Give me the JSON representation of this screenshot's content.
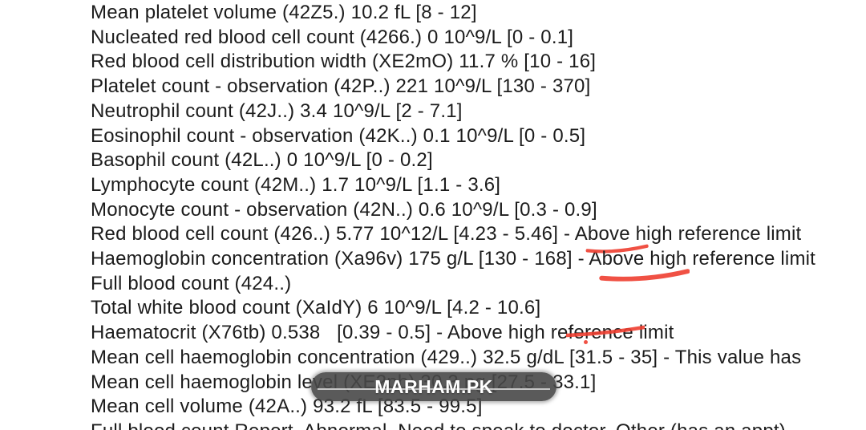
{
  "page": {
    "background": "#ffffff",
    "text_color": "#1c1c1c",
    "annotation_color": "#ee3e30"
  },
  "watermark": {
    "label": "MARHAM.PK"
  },
  "report": {
    "lines": [
      {
        "segments": [
          {
            "text": "Mean platelet volume (42Z5.) 10.2 fL [8 - 12]",
            "mark": null
          }
        ]
      },
      {
        "segments": [
          {
            "text": "Nucleated red blood cell count (4266.) 0 10^9/L [0 - 0.1]",
            "mark": null
          }
        ]
      },
      {
        "segments": [
          {
            "text": "Red blood cell distribution width (XE2mO) 11.7 % [10 - 16]",
            "mark": null
          }
        ]
      },
      {
        "segments": [
          {
            "text": "Platelet count - observation (42P..) 221 10^9/L [130 - 370]",
            "mark": null
          }
        ]
      },
      {
        "segments": [
          {
            "text": "Neutrophil count (42J..) 3.4 10^9/L [2 - 7.1]",
            "mark": null
          }
        ]
      },
      {
        "segments": [
          {
            "text": "Eosinophil count - observation (42K..) 0.1 10^9/L [0 - 0.5]",
            "mark": null
          }
        ]
      },
      {
        "segments": [
          {
            "text": "Basophil count (42L..) 0 10^9/L [0 - 0.2]",
            "mark": null
          }
        ]
      },
      {
        "segments": [
          {
            "text": "Lymphocyte count (42M..) 1.7 10^9/L [1.1 - 3.6]",
            "mark": null
          }
        ]
      },
      {
        "segments": [
          {
            "text": "Monocyte count - observation (42N..) 0.6 10^9/L [0.3 - 0.9]",
            "mark": null
          }
        ]
      },
      {
        "segments": [
          {
            "text": "Red blood cell count (426..) 5.77 10^12/L [4.23 - 5.46] - A",
            "mark": null
          },
          {
            "text": "bove h",
            "mark": "underline"
          },
          {
            "text": "igh reference limit",
            "mark": null
          }
        ]
      },
      {
        "segments": [
          {
            "text": "Haemoglobin concentration (Xa96v) 175 g/L [130 - 168] - A",
            "mark": null
          },
          {
            "text": "bove high",
            "mark": "underline-thick"
          },
          {
            "text": " reference limit",
            "mark": null
          }
        ]
      },
      {
        "segments": [
          {
            "text": "Full blood count (424..)",
            "mark": null
          }
        ]
      },
      {
        "segments": [
          {
            "text": "Total white blood count (XaIdY) 6 10^9/L [4.2 - 10.6]",
            "mark": null
          }
        ]
      },
      {
        "segments": [
          {
            "text": "Haematocrit (X76tb) 0.538   [0.39 - 0.5] - Above high re",
            "mark": null
          },
          {
            "text": "ference ",
            "mark": "strike"
          },
          {
            "text": "limit",
            "mark": null
          }
        ]
      },
      {
        "segments": [
          {
            "text": "Mean cell haemoglobin concentration (429..) 32.5 g/dL [",
            "mark": null
          },
          {
            "text": "31",
            "mark": "dot"
          },
          {
            "text": ".5 - 35] - This value has",
            "mark": null
          }
        ]
      },
      {
        "segments": [
          {
            "text": "Mean cell haemoglobin level (XE2pb) 30.3 pg [27.5 - 33.1]",
            "mark": null
          }
        ]
      },
      {
        "segments": [
          {
            "text": "Mean cell volume (42A..) 93.2 fL [83.5 - 99.5]",
            "mark": null
          }
        ]
      },
      {
        "segments": [
          {
            "text": "Full blood count Report, Abnormal, Need to speak to doctor, Other (has an appt)",
            "mark": null
          }
        ]
      }
    ]
  }
}
